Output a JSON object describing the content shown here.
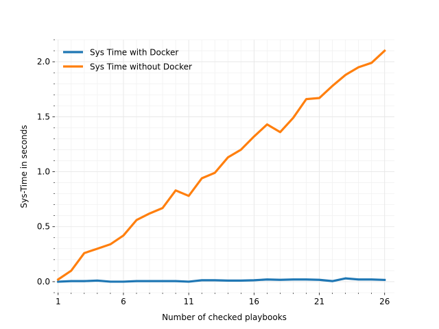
{
  "chart_data": {
    "type": "line",
    "title": "",
    "xlabel": "Number of checked playbooks",
    "ylabel": "Sys-Time in seconds",
    "xlim": [
      0.75,
      26.75
    ],
    "ylim": [
      -0.1,
      2.2
    ],
    "xticks": [
      1,
      6,
      11,
      16,
      21,
      26
    ],
    "xtick_labels": [
      "1",
      "6",
      "11",
      "16",
      "21",
      "26"
    ],
    "yticks": [
      0.0,
      0.5,
      1.0,
      1.5,
      2.0
    ],
    "ytick_labels": [
      "0.0",
      "0.5",
      "1.0",
      "1.5",
      "2.0"
    ],
    "grid": true,
    "legend_position": "top-left",
    "x": [
      1,
      2,
      3,
      4,
      5,
      6,
      7,
      8,
      9,
      10,
      11,
      12,
      13,
      14,
      15,
      16,
      17,
      18,
      19,
      20,
      21,
      22,
      23,
      24,
      25,
      26
    ],
    "series": [
      {
        "name": "Sys Time with Docker",
        "color": "#1f77b4",
        "values": [
          0.0,
          0.005,
          0.005,
          0.01,
          0.0,
          0.0,
          0.005,
          0.005,
          0.005,
          0.005,
          0.0,
          0.013,
          0.013,
          0.01,
          0.01,
          0.013,
          0.02,
          0.017,
          0.02,
          0.02,
          0.017,
          0.005,
          0.03,
          0.02,
          0.02,
          0.016
        ]
      },
      {
        "name": "Sys Time without Docker",
        "color": "#ff7f0e",
        "values": [
          0.02,
          0.1,
          0.26,
          0.3,
          0.34,
          0.42,
          0.56,
          0.62,
          0.67,
          0.83,
          0.78,
          0.94,
          0.99,
          1.13,
          1.2,
          1.32,
          1.43,
          1.36,
          1.49,
          1.66,
          1.67,
          1.78,
          1.88,
          1.95,
          1.99,
          2.1
        ]
      }
    ]
  }
}
